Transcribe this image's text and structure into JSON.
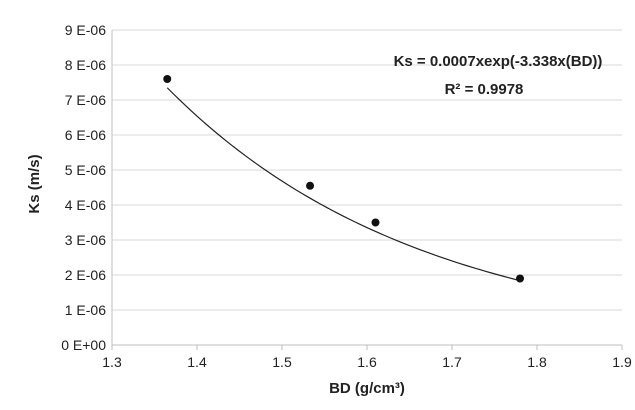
{
  "chart_data": {
    "type": "scatter",
    "title": "",
    "xlabel": "BD (g/cm³)",
    "ylabel": "Ks (m/s)",
    "xlim": [
      1.3,
      1.9
    ],
    "ylim": [
      0,
      9e-06
    ],
    "x_ticks": [
      "1.3",
      "1.4",
      "1.5",
      "1.6",
      "1.7",
      "1.8",
      "1.9"
    ],
    "y_ticks": [
      "0 E+00",
      "1 E-06",
      "2 E-06",
      "3 E-06",
      "4 E-06",
      "5 E-06",
      "6 E-06",
      "7 E-06",
      "8 E-06",
      "9 E-06"
    ],
    "grid": "horizontal",
    "series": [
      {
        "x": [
          1.365,
          1.533,
          1.61,
          1.78
        ],
        "y": [
          7.6e-06,
          4.55e-06,
          3.5e-06,
          1.9e-06
        ]
      }
    ],
    "trendline": {
      "type": "exponential",
      "a": 0.0007,
      "b": -3.338,
      "x_range": [
        1.365,
        1.78
      ]
    },
    "annotations": {
      "equation": "Ks = 0.0007xexp(-3.338x(BD))",
      "r_squared": "R² = 0.9978"
    }
  }
}
